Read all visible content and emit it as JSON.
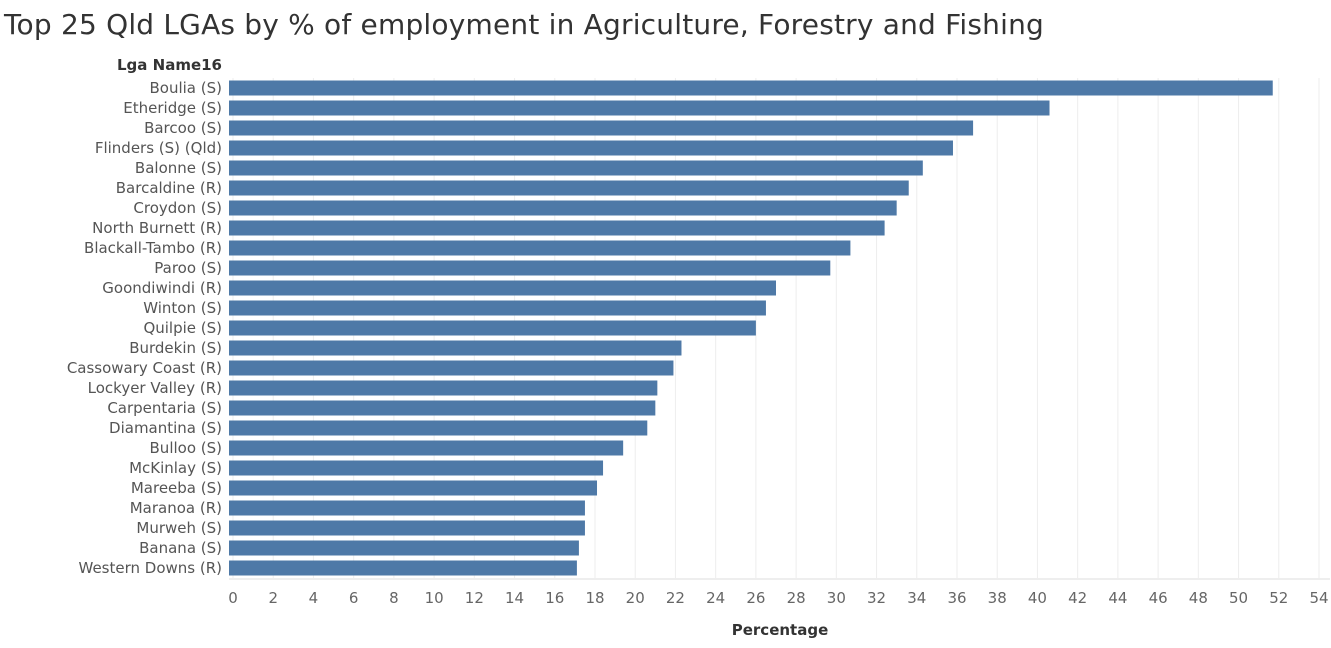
{
  "chart_data": {
    "type": "bar",
    "orientation": "horizontal",
    "title": "Top 25 Qld LGAs by % of employment in Agriculture, Forestry and Fishing",
    "row_header": "Lga Name16",
    "xlabel": "Percentage",
    "ylabel": "",
    "xlim": [
      0,
      54
    ],
    "x_ticks": [
      "0",
      "2",
      "4",
      "6",
      "8",
      "10",
      "12",
      "14",
      "16",
      "18",
      "20",
      "22",
      "24",
      "26",
      "28",
      "30",
      "32",
      "34",
      "36",
      "38",
      "40",
      "42",
      "44",
      "46",
      "48",
      "50",
      "52",
      "54"
    ],
    "grid": "vertical gridlines",
    "legend": "none",
    "bar_color": "#4e79a7",
    "categories": [
      "Boulia (S)",
      "Etheridge (S)",
      "Barcoo (S)",
      "Flinders (S) (Qld)",
      "Balonne (S)",
      "Barcaldine (R)",
      "Croydon (S)",
      "North Burnett (R)",
      "Blackall-Tambo (R)",
      "Paroo (S)",
      "Goondiwindi (R)",
      "Winton (S)",
      "Quilpie (S)",
      "Burdekin (S)",
      "Cassowary Coast (R)",
      "Lockyer Valley (R)",
      "Carpentaria (S)",
      "Diamantina (S)",
      "Bulloo (S)",
      "McKinlay (S)",
      "Mareeba (S)",
      "Maranoa (R)",
      "Murweh (S)",
      "Banana (S)",
      "Western Downs (R)"
    ],
    "values": [
      51.7,
      40.6,
      36.8,
      35.8,
      34.3,
      33.6,
      33.0,
      32.4,
      30.7,
      29.7,
      27.0,
      26.5,
      26.0,
      22.3,
      21.9,
      21.1,
      21.0,
      20.6,
      19.4,
      18.4,
      18.1,
      17.5,
      17.5,
      17.2,
      17.1
    ]
  }
}
